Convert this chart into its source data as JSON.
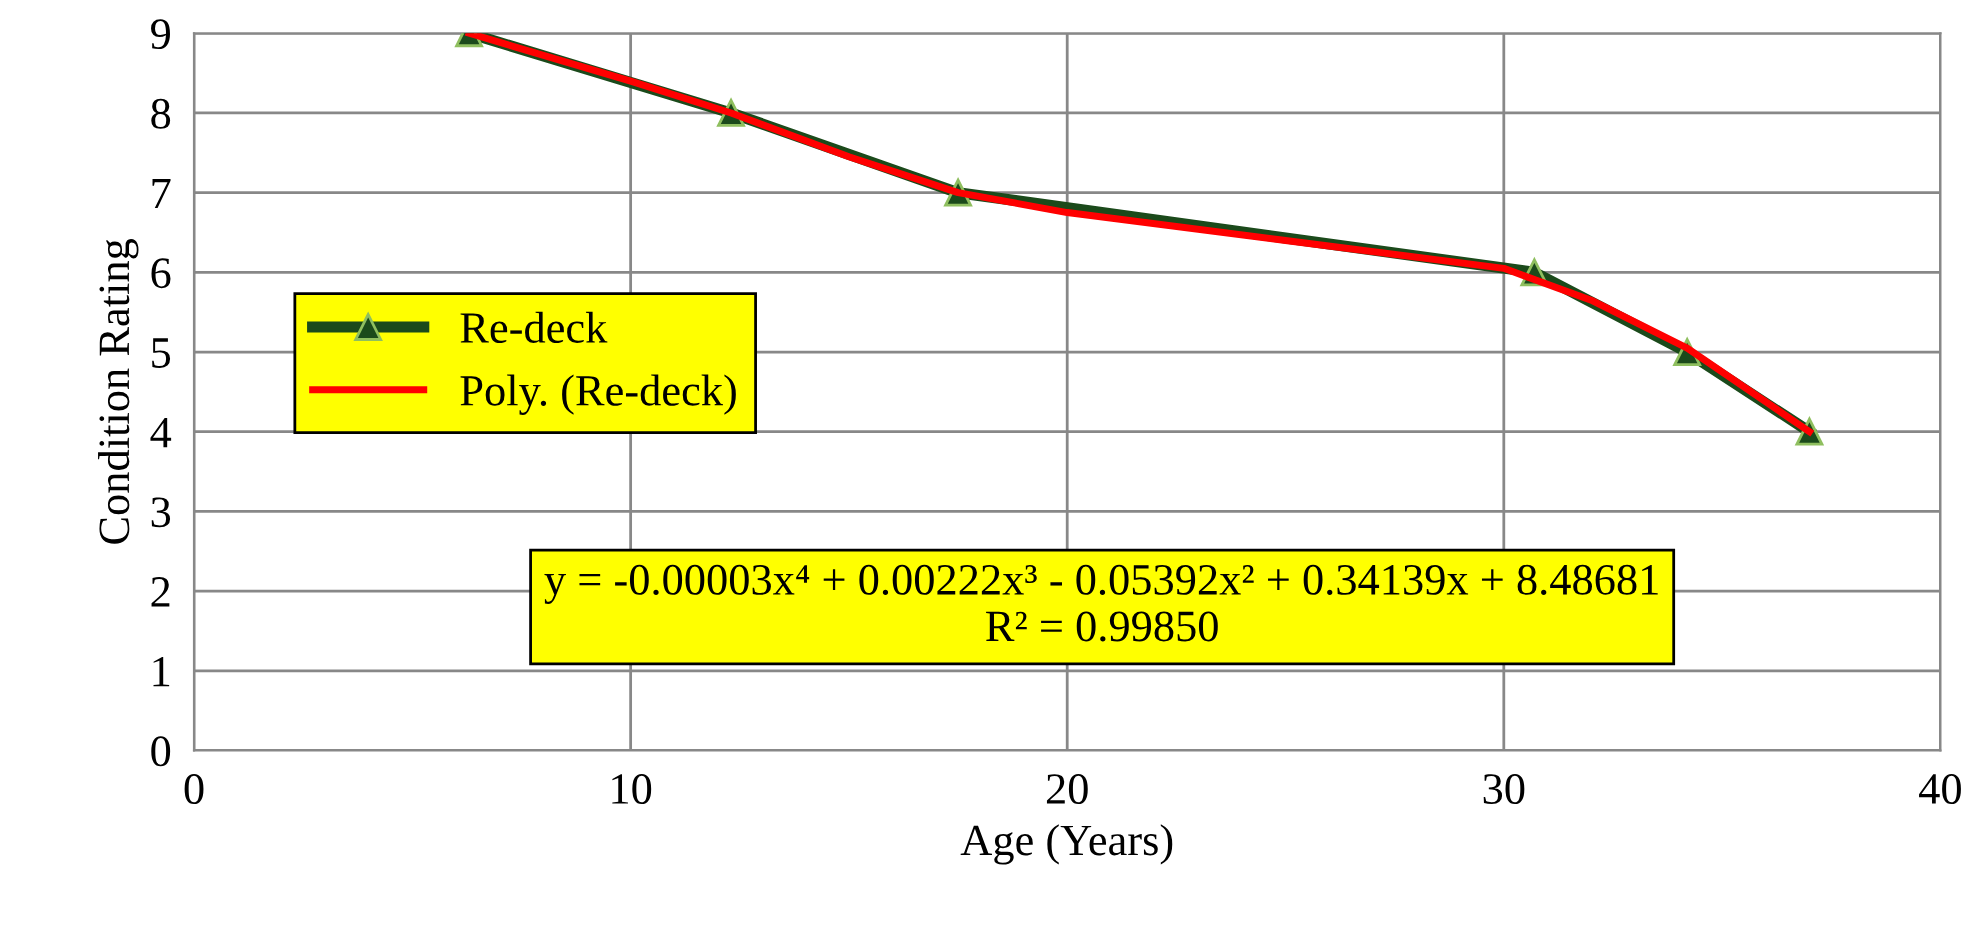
{
  "chart_data": {
    "type": "line",
    "xlabel": "Age (Years)",
    "ylabel": "Condition Rating",
    "series": [
      {
        "name": "Re-deck",
        "color": "#1b4a1b",
        "marker": "triangle",
        "x": [
          6.3,
          12.3,
          17.5,
          30.7,
          34.2,
          37.0
        ],
        "values": [
          9,
          8,
          7,
          6,
          5,
          4
        ]
      },
      {
        "name": "Poly. (Re-deck)",
        "color": "#ff0000",
        "marker": "none",
        "x": [
          6.3,
          10,
          12.3,
          15,
          17.5,
          20,
          25,
          30,
          32,
          34.2,
          37.0
        ],
        "values": [
          9.0,
          8.4,
          8.0,
          7.45,
          7.0,
          6.75,
          6.4,
          6.05,
          5.65,
          5.05,
          4.0
        ]
      }
    ],
    "xlim": [
      0,
      40
    ],
    "xticks": [
      0,
      10,
      20,
      30,
      40
    ],
    "ylim": [
      0,
      9
    ],
    "yticks": [
      0,
      1,
      2,
      3,
      4,
      5,
      6,
      7,
      8,
      9
    ],
    "grid": true,
    "legend": "center left",
    "annotations": [
      "y = -0.00003x⁴ + 0.00222x³ - 0.05392x² + 0.34139x + 8.48681\nR² = 0.99850"
    ]
  }
}
